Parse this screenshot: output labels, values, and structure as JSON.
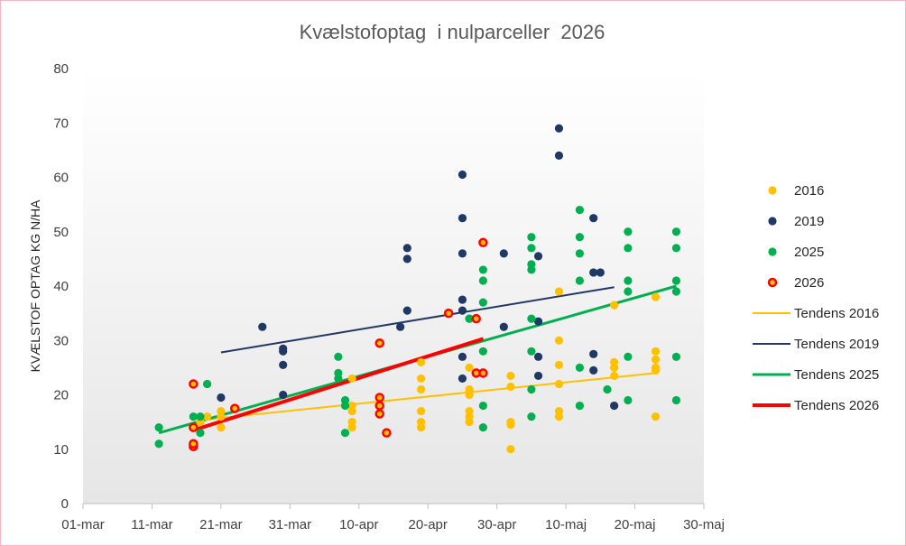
{
  "chart_data": {
    "type": "scatter",
    "title": "Kvælstofoptag  i nulparceller  2026",
    "ylabel": "KVÆLSTOF OPTAG KG N/HA",
    "xlabel": "",
    "ylim": [
      0,
      80
    ],
    "yticks": [
      0,
      10,
      20,
      30,
      40,
      50,
      60,
      70,
      80
    ],
    "xlim": [
      "2026-03-01",
      "2026-05-30"
    ],
    "xticks": [
      {
        "date": "2026-03-01",
        "label": "01-mar"
      },
      {
        "date": "2026-03-11",
        "label": "11-mar"
      },
      {
        "date": "2026-03-21",
        "label": "21-mar"
      },
      {
        "date": "2026-03-31",
        "label": "31-mar"
      },
      {
        "date": "2026-04-10",
        "label": "10-apr"
      },
      {
        "date": "2026-04-20",
        "label": "20-apr"
      },
      {
        "date": "2026-04-30",
        "label": "30-apr"
      },
      {
        "date": "2026-05-10",
        "label": "10-maj"
      },
      {
        "date": "2026-05-20",
        "label": "20-maj"
      },
      {
        "date": "2026-05-30",
        "label": "30-maj"
      }
    ],
    "grid": false,
    "legend_position": "right",
    "series": [
      {
        "name": "2016",
        "color": "#ffc000",
        "marker": "dot",
        "points": [
          [
            "2026-03-17",
            11
          ],
          [
            "2026-03-18",
            15
          ],
          [
            "2026-03-19",
            16
          ],
          [
            "2026-03-19",
            22
          ],
          [
            "2026-03-21",
            17
          ],
          [
            "2026-03-21",
            14
          ],
          [
            "2026-03-21",
            16
          ],
          [
            "2026-04-09",
            14
          ],
          [
            "2026-04-09",
            15
          ],
          [
            "2026-04-09",
            17
          ],
          [
            "2026-04-09",
            18
          ],
          [
            "2026-04-09",
            23
          ],
          [
            "2026-04-19",
            14
          ],
          [
            "2026-04-19",
            15
          ],
          [
            "2026-04-19",
            17
          ],
          [
            "2026-04-19",
            21
          ],
          [
            "2026-04-19",
            23
          ],
          [
            "2026-04-19",
            26
          ],
          [
            "2026-04-26",
            15
          ],
          [
            "2026-04-26",
            16
          ],
          [
            "2026-04-26",
            17
          ],
          [
            "2026-04-26",
            20
          ],
          [
            "2026-04-26",
            21
          ],
          [
            "2026-04-26",
            25
          ],
          [
            "2026-05-02",
            10
          ],
          [
            "2026-05-02",
            14.5
          ],
          [
            "2026-05-02",
            15
          ],
          [
            "2026-05-02",
            21.5
          ],
          [
            "2026-05-02",
            23.5
          ],
          [
            "2026-05-09",
            16
          ],
          [
            "2026-05-09",
            17
          ],
          [
            "2026-05-09",
            22
          ],
          [
            "2026-05-09",
            25.5
          ],
          [
            "2026-05-09",
            30
          ],
          [
            "2026-05-09",
            39
          ],
          [
            "2026-05-17",
            18
          ],
          [
            "2026-05-17",
            23.5
          ],
          [
            "2026-05-17",
            25
          ],
          [
            "2026-05-17",
            26
          ],
          [
            "2026-05-17",
            36.5
          ],
          [
            "2026-05-23",
            16
          ],
          [
            "2026-05-23",
            24.5
          ],
          [
            "2026-05-23",
            25
          ],
          [
            "2026-05-23",
            26.5
          ],
          [
            "2026-05-23",
            28
          ],
          [
            "2026-05-23",
            38
          ]
        ]
      },
      {
        "name": "2019",
        "color": "#203864",
        "marker": "dot",
        "points": [
          [
            "2026-03-21",
            19.5
          ],
          [
            "2026-03-27",
            32.5
          ],
          [
            "2026-03-30",
            20
          ],
          [
            "2026-03-30",
            25.5
          ],
          [
            "2026-03-30",
            28
          ],
          [
            "2026-03-30",
            28.5
          ],
          [
            "2026-04-16",
            32.5
          ],
          [
            "2026-04-17",
            35.5
          ],
          [
            "2026-04-17",
            45
          ],
          [
            "2026-04-17",
            47
          ],
          [
            "2026-04-25",
            23
          ],
          [
            "2026-04-25",
            27
          ],
          [
            "2026-04-25",
            35.5
          ],
          [
            "2026-04-25",
            37.5
          ],
          [
            "2026-04-25",
            46
          ],
          [
            "2026-04-25",
            52.5
          ],
          [
            "2026-04-25",
            60.5
          ],
          [
            "2026-05-01",
            32.5
          ],
          [
            "2026-05-01",
            46
          ],
          [
            "2026-05-06",
            23.5
          ],
          [
            "2026-05-06",
            27
          ],
          [
            "2026-05-06",
            33.5
          ],
          [
            "2026-05-06",
            45.5
          ],
          [
            "2026-05-09",
            64
          ],
          [
            "2026-05-09",
            69
          ],
          [
            "2026-05-14",
            24.5
          ],
          [
            "2026-05-14",
            27.5
          ],
          [
            "2026-05-14",
            42.5
          ],
          [
            "2026-05-14",
            52.5
          ],
          [
            "2026-05-15",
            42.5
          ],
          [
            "2026-05-17",
            18
          ]
        ]
      },
      {
        "name": "2025",
        "color": "#00b050",
        "marker": "dot",
        "points": [
          [
            "2026-03-12",
            11
          ],
          [
            "2026-03-12",
            14
          ],
          [
            "2026-03-17",
            16
          ],
          [
            "2026-03-18",
            13
          ],
          [
            "2026-03-18",
            16
          ],
          [
            "2026-03-19",
            22
          ],
          [
            "2026-04-07",
            24
          ],
          [
            "2026-04-07",
            27
          ],
          [
            "2026-04-07",
            23
          ],
          [
            "2026-04-08",
            13
          ],
          [
            "2026-04-08",
            18
          ],
          [
            "2026-04-08",
            19
          ],
          [
            "2026-04-26",
            34
          ],
          [
            "2026-04-26",
            34
          ],
          [
            "2026-04-28",
            14
          ],
          [
            "2026-04-28",
            18
          ],
          [
            "2026-04-28",
            28
          ],
          [
            "2026-04-28",
            37
          ],
          [
            "2026-04-28",
            41
          ],
          [
            "2026-04-28",
            43
          ],
          [
            "2026-05-05",
            16
          ],
          [
            "2026-05-05",
            21
          ],
          [
            "2026-05-05",
            28
          ],
          [
            "2026-05-05",
            34
          ],
          [
            "2026-05-05",
            43
          ],
          [
            "2026-05-05",
            44
          ],
          [
            "2026-05-05",
            47
          ],
          [
            "2026-05-05",
            49
          ],
          [
            "2026-05-12",
            18
          ],
          [
            "2026-05-12",
            25
          ],
          [
            "2026-05-12",
            41
          ],
          [
            "2026-05-12",
            46
          ],
          [
            "2026-05-12",
            49
          ],
          [
            "2026-05-12",
            54
          ],
          [
            "2026-05-16",
            21
          ],
          [
            "2026-05-19",
            19
          ],
          [
            "2026-05-19",
            27
          ],
          [
            "2026-05-19",
            39
          ],
          [
            "2026-05-19",
            41
          ],
          [
            "2026-05-19",
            47
          ],
          [
            "2026-05-19",
            50
          ],
          [
            "2026-05-26",
            19
          ],
          [
            "2026-05-26",
            27
          ],
          [
            "2026-05-26",
            39
          ],
          [
            "2026-05-26",
            41
          ],
          [
            "2026-05-26",
            47
          ],
          [
            "2026-05-26",
            50
          ]
        ]
      },
      {
        "name": "2026",
        "color": "#ff0000",
        "fill": "#ffc000",
        "marker": "ringed-dot",
        "points": [
          [
            "2026-03-17",
            10.5
          ],
          [
            "2026-03-17",
            11
          ],
          [
            "2026-03-17",
            14
          ],
          [
            "2026-03-17",
            22
          ],
          [
            "2026-03-23",
            17.5
          ],
          [
            "2026-04-13",
            16.5
          ],
          [
            "2026-04-13",
            18
          ],
          [
            "2026-04-13",
            19.5
          ],
          [
            "2026-04-13",
            29.5
          ],
          [
            "2026-04-14",
            13
          ],
          [
            "2026-04-23",
            35
          ],
          [
            "2026-04-27",
            24
          ],
          [
            "2026-04-27",
            34
          ],
          [
            "2026-04-28",
            24
          ],
          [
            "2026-04-28",
            48
          ]
        ]
      }
    ],
    "trendlines": [
      {
        "name": "Tendens 2016",
        "color": "#ffc000",
        "width": 2,
        "points": [
          [
            "2026-03-19",
            15.5
          ],
          [
            "2026-05-23",
            24
          ]
        ]
      },
      {
        "name": "Tendens 2019",
        "color": "#203864",
        "width": 2,
        "points": [
          [
            "2026-03-21",
            27.8
          ],
          [
            "2026-05-17",
            39.8
          ]
        ]
      },
      {
        "name": "Tendens 2025",
        "color": "#00b050",
        "width": 3,
        "points": [
          [
            "2026-03-12",
            13
          ],
          [
            "2026-05-26",
            40
          ]
        ]
      },
      {
        "name": "Tendens 2026",
        "color": "#ff0000",
        "width": 4,
        "points": [
          [
            "2026-03-17",
            13.5
          ],
          [
            "2026-04-28",
            30.3
          ]
        ]
      }
    ]
  }
}
